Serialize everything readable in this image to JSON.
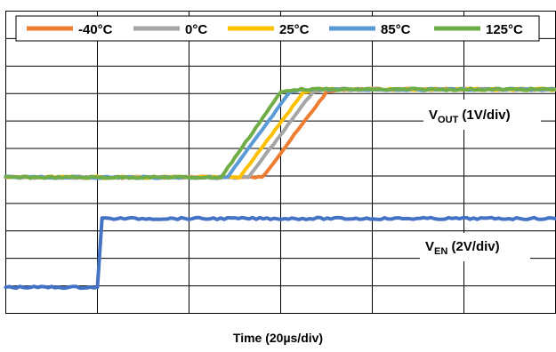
{
  "chart_data": {
    "type": "line",
    "title": "",
    "xlabel": "Time (20µs/div)",
    "ylabel": "",
    "grid": true,
    "grid_divisions": {
      "x": 6,
      "y": 11
    },
    "legend_position": "top",
    "series": [
      {
        "name": "-40°C",
        "color": "#ED7D31",
        "signal": "V_OUT",
        "x": [
          0,
          1.0,
          2.0,
          2.6,
          2.8,
          3.5,
          3.65,
          4,
          6
        ],
        "y": [
          4.95,
          4.95,
          4.95,
          4.95,
          4.95,
          8.05,
          8.15,
          8.15,
          8.15
        ]
      },
      {
        "name": "0°C",
        "color": "#A5A5A5",
        "signal": "V_OUT",
        "x": [
          0,
          1.0,
          2.0,
          2.5,
          2.65,
          3.35,
          3.5,
          4,
          6
        ],
        "y": [
          4.95,
          4.95,
          4.95,
          4.95,
          4.95,
          8.05,
          8.15,
          8.15,
          8.15
        ]
      },
      {
        "name": "25°C",
        "color": "#FFC000",
        "signal": "V_OUT",
        "x": [
          0,
          1.0,
          2.0,
          2.4,
          2.55,
          3.25,
          3.4,
          4,
          6
        ],
        "y": [
          4.95,
          4.95,
          4.95,
          4.95,
          4.95,
          8.05,
          8.15,
          8.15,
          8.15
        ]
      },
      {
        "name": "85°C",
        "color": "#5B9BD5",
        "signal": "V_OUT",
        "x": [
          0,
          1.0,
          2.0,
          2.3,
          2.42,
          3.1,
          3.25,
          4,
          6
        ],
        "y": [
          4.95,
          4.95,
          4.95,
          4.95,
          4.95,
          8.05,
          8.15,
          8.15,
          8.15
        ]
      },
      {
        "name": "125°C",
        "color": "#70AD47",
        "signal": "V_OUT",
        "x": [
          0,
          1.0,
          2.0,
          2.25,
          2.35,
          3.0,
          3.15,
          4,
          6
        ],
        "y": [
          4.95,
          4.95,
          4.95,
          4.95,
          4.95,
          8.05,
          8.15,
          8.15,
          8.15
        ]
      },
      {
        "signal": "V_EN",
        "color": "#4472C4",
        "x": [
          0,
          1.0,
          1.05,
          1.1,
          6
        ],
        "y": [
          0.95,
          0.95,
          3.45,
          3.45,
          3.45
        ]
      }
    ],
    "annotations": [
      {
        "sub_base": "V",
        "sub": "OUT",
        "suffix": " (1V/div)"
      },
      {
        "sub_base": "V",
        "sub": "EN",
        "suffix": " (2V/div)"
      }
    ]
  }
}
